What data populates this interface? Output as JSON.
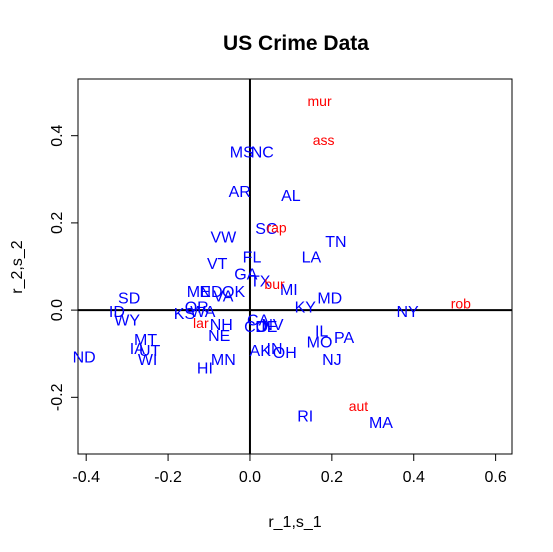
{
  "chart_data": {
    "type": "scatter",
    "title": "US Crime Data",
    "xlabel": "r_1,s_1",
    "ylabel": "r_2,s_2",
    "xlim": [
      -0.42,
      0.64
    ],
    "ylim": [
      -0.33,
      0.53
    ],
    "xticks": [
      -0.4,
      -0.2,
      0.0,
      0.2,
      0.4,
      0.6
    ],
    "xtick_labels": [
      "-0.4",
      "-0.2",
      "0.0",
      "0.2",
      "0.4",
      "0.6"
    ],
    "yticks": [
      -0.2,
      0.0,
      0.2,
      0.4
    ],
    "ytick_labels": [
      "-0.2",
      "0.0",
      "0.2",
      "0.4"
    ],
    "reference_lines": {
      "x": 0,
      "y": 0
    },
    "grid": false,
    "colors": {
      "states": "#0000ff",
      "variables": "#ff0000",
      "axes": "#000000"
    },
    "series": [
      {
        "color": "#0000ff",
        "points": [
          {
            "label": "MS",
            "x": -0.02,
            "y": 0.36
          },
          {
            "label": "NC",
            "x": 0.03,
            "y": 0.36
          },
          {
            "label": "AR",
            "x": -0.025,
            "y": 0.27
          },
          {
            "label": "AL",
            "x": 0.1,
            "y": 0.26
          },
          {
            "label": "SC",
            "x": 0.04,
            "y": 0.185
          },
          {
            "label": "TN",
            "x": 0.21,
            "y": 0.155
          },
          {
            "label": "VW",
            "x": -0.065,
            "y": 0.165
          },
          {
            "label": "FL",
            "x": 0.005,
            "y": 0.12
          },
          {
            "label": "LA",
            "x": 0.15,
            "y": 0.12
          },
          {
            "label": "VT",
            "x": -0.08,
            "y": 0.105
          },
          {
            "label": "GA",
            "x": -0.01,
            "y": 0.08
          },
          {
            "label": "TX",
            "x": 0.025,
            "y": 0.065
          },
          {
            "label": "MI",
            "x": 0.095,
            "y": 0.045
          },
          {
            "label": "ME",
            "x": -0.125,
            "y": 0.04
          },
          {
            "label": "ND",
            "x": -0.095,
            "y": 0.04
          },
          {
            "label": "VA",
            "x": -0.065,
            "y": 0.03
          },
          {
            "label": "OK",
            "x": -0.04,
            "y": 0.04
          },
          {
            "label": "MD",
            "x": 0.195,
            "y": 0.025
          },
          {
            "label": "KY",
            "x": 0.135,
            "y": 0.005
          },
          {
            "label": "NY",
            "x": 0.385,
            "y": -0.005
          },
          {
            "label": "SD",
            "x": -0.295,
            "y": 0.025
          },
          {
            "label": "ID",
            "x": -0.325,
            "y": -0.005
          },
          {
            "label": "WY",
            "x": -0.3,
            "y": -0.025
          },
          {
            "label": "KS",
            "x": -0.16,
            "y": -0.01
          },
          {
            "label": "OR",
            "x": -0.13,
            "y": 0.005
          },
          {
            "label": "WA",
            "x": -0.115,
            "y": -0.005
          },
          {
            "label": "NH",
            "x": -0.07,
            "y": -0.035
          },
          {
            "label": "NE",
            "x": -0.075,
            "y": -0.06
          },
          {
            "label": "CA",
            "x": 0.02,
            "y": -0.025
          },
          {
            "label": "CO",
            "x": 0.015,
            "y": -0.04
          },
          {
            "label": "DE",
            "x": 0.04,
            "y": -0.04
          },
          {
            "label": "NV",
            "x": 0.055,
            "y": -0.035
          },
          {
            "label": "MO",
            "x": 0.17,
            "y": -0.075
          },
          {
            "label": "IL",
            "x": 0.175,
            "y": -0.05
          },
          {
            "label": "PA",
            "x": 0.23,
            "y": -0.065
          },
          {
            "label": "MT",
            "x": -0.255,
            "y": -0.07
          },
          {
            "label": "IA",
            "x": -0.275,
            "y": -0.09
          },
          {
            "label": "UT",
            "x": -0.245,
            "y": -0.095
          },
          {
            "label": "WI",
            "x": -0.25,
            "y": -0.115
          },
          {
            "label": "AK",
            "x": 0.025,
            "y": -0.095
          },
          {
            "label": "IN",
            "x": 0.06,
            "y": -0.09
          },
          {
            "label": "OH",
            "x": 0.085,
            "y": -0.1
          },
          {
            "label": "NJ",
            "x": 0.2,
            "y": -0.115
          },
          {
            "label": "MN",
            "x": -0.065,
            "y": -0.115
          },
          {
            "label": "HI",
            "x": -0.11,
            "y": -0.135
          },
          {
            "label": "ND",
            "x": -0.405,
            "y": -0.11
          },
          {
            "label": "RI",
            "x": 0.135,
            "y": -0.245
          },
          {
            "label": "MA",
            "x": 0.32,
            "y": -0.26
          }
        ]
      },
      {
        "color": "#ff0000",
        "points": [
          {
            "label": "mur",
            "x": 0.17,
            "y": 0.48
          },
          {
            "label": "ass",
            "x": 0.18,
            "y": 0.39
          },
          {
            "label": "rap",
            "x": 0.065,
            "y": 0.19
          },
          {
            "label": "bur",
            "x": 0.06,
            "y": 0.06
          },
          {
            "label": "lar",
            "x": -0.12,
            "y": -0.03
          },
          {
            "label": "rob",
            "x": 0.515,
            "y": 0.015
          },
          {
            "label": "aut",
            "x": 0.265,
            "y": -0.22
          }
        ]
      }
    ]
  }
}
